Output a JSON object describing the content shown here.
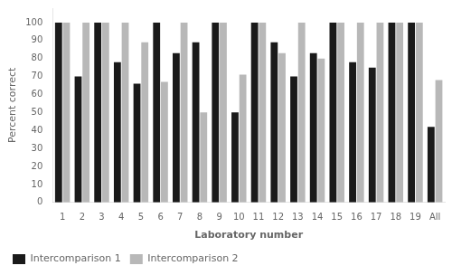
{
  "chart_data": {
    "type": "bar",
    "categories": [
      "1",
      "2",
      "3",
      "4",
      "5",
      "6",
      "7",
      "8",
      "9",
      "10",
      "11",
      "12",
      "13",
      "14",
      "15",
      "16",
      "17",
      "18",
      "19",
      "All"
    ],
    "series": [
      {
        "name": "Intercomparison 1",
        "color": "#1a1a1a",
        "values": [
          100,
          70,
          100,
          78,
          66,
          100,
          83,
          89,
          100,
          50,
          100,
          89,
          70,
          83,
          100,
          78,
          75,
          100,
          100,
          42
        ]
      },
      {
        "name": "Intercomparison 2",
        "color": "#b8b8b8",
        "values": [
          100,
          100,
          100,
          100,
          89,
          67,
          100,
          50,
          100,
          71,
          100,
          83,
          100,
          80,
          100,
          100,
          100,
          100,
          100,
          68
        ]
      }
    ],
    "xlabel": "Laboratory number",
    "ylabel": "Percent correct",
    "ylim": [
      0,
      108
    ],
    "yticks": [
      0,
      10,
      20,
      30,
      40,
      50,
      60,
      70,
      80,
      90,
      100
    ],
    "grid": false,
    "legend": "lower left"
  }
}
